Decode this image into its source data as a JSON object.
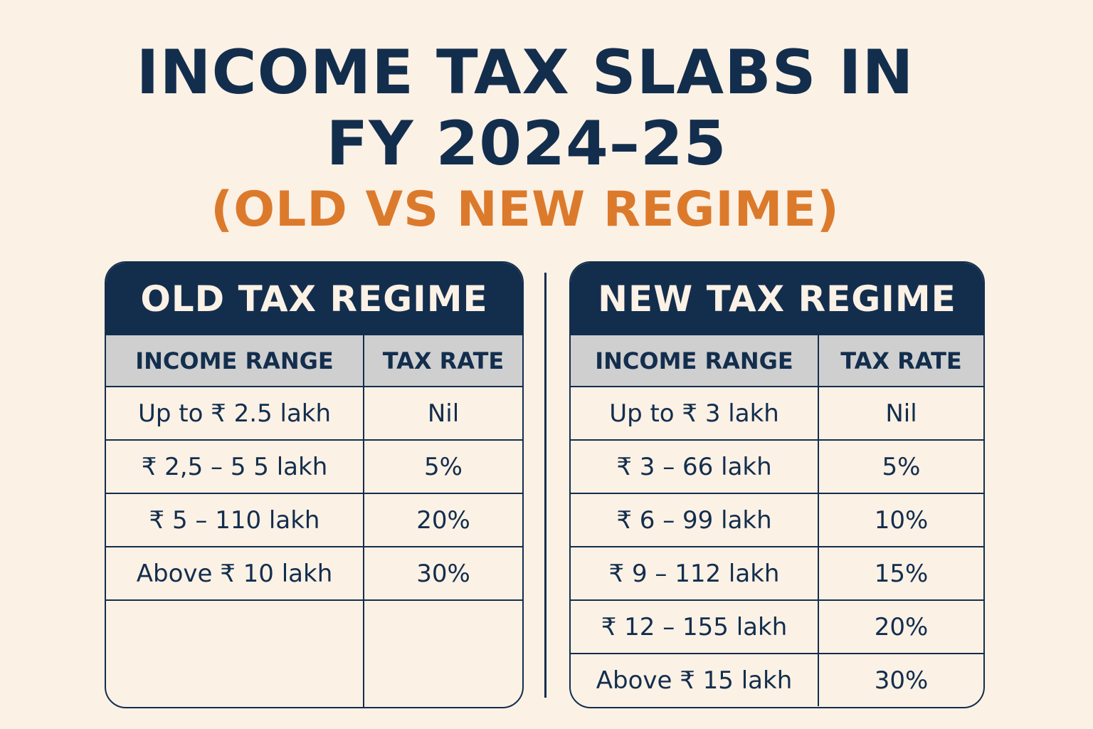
{
  "title": {
    "line1": "INCOME TAX SLABS IN",
    "line2": "FY 2024–25",
    "subtitle": "(OLD VS NEW REGIME)"
  },
  "colors": {
    "navy": "#132e4d",
    "orange": "#dc7a2c",
    "background": "#fbf1e5",
    "header_gray": "#cfcfd0"
  },
  "old_regime": {
    "heading": "OLD TAX REGIME",
    "columns": [
      "INCOME RANGE",
      "TAX RATE"
    ],
    "rows": [
      {
        "range": "Up to ₹ 2.5 lakh",
        "rate": "Nil"
      },
      {
        "range": "₹ 2,5 – 5 5 lakh",
        "rate": "5%"
      },
      {
        "range": "₹ 5 – 110 lakh",
        "rate": "20%"
      },
      {
        "range": "Above ₹ 10 lakh",
        "rate": "30%"
      }
    ]
  },
  "new_regime": {
    "heading": "NEW TAX REGIME",
    "columns": [
      "INCOME RANGE",
      "TAX RATE"
    ],
    "rows": [
      {
        "range": "Up to ₹ 3 lakh",
        "rate": "Nil"
      },
      {
        "range": "₹ 3 – 66 lakh",
        "rate": "5%"
      },
      {
        "range": "₹ 6 – 99 lakh",
        "rate": "10%"
      },
      {
        "range": "₹ 9 – 112 lakh",
        "rate": "15%"
      },
      {
        "range": "₹ 12 – 155 lakh",
        "rate": "20%"
      },
      {
        "range": "Above ₹ 15 lakh",
        "rate": "30%"
      }
    ]
  }
}
